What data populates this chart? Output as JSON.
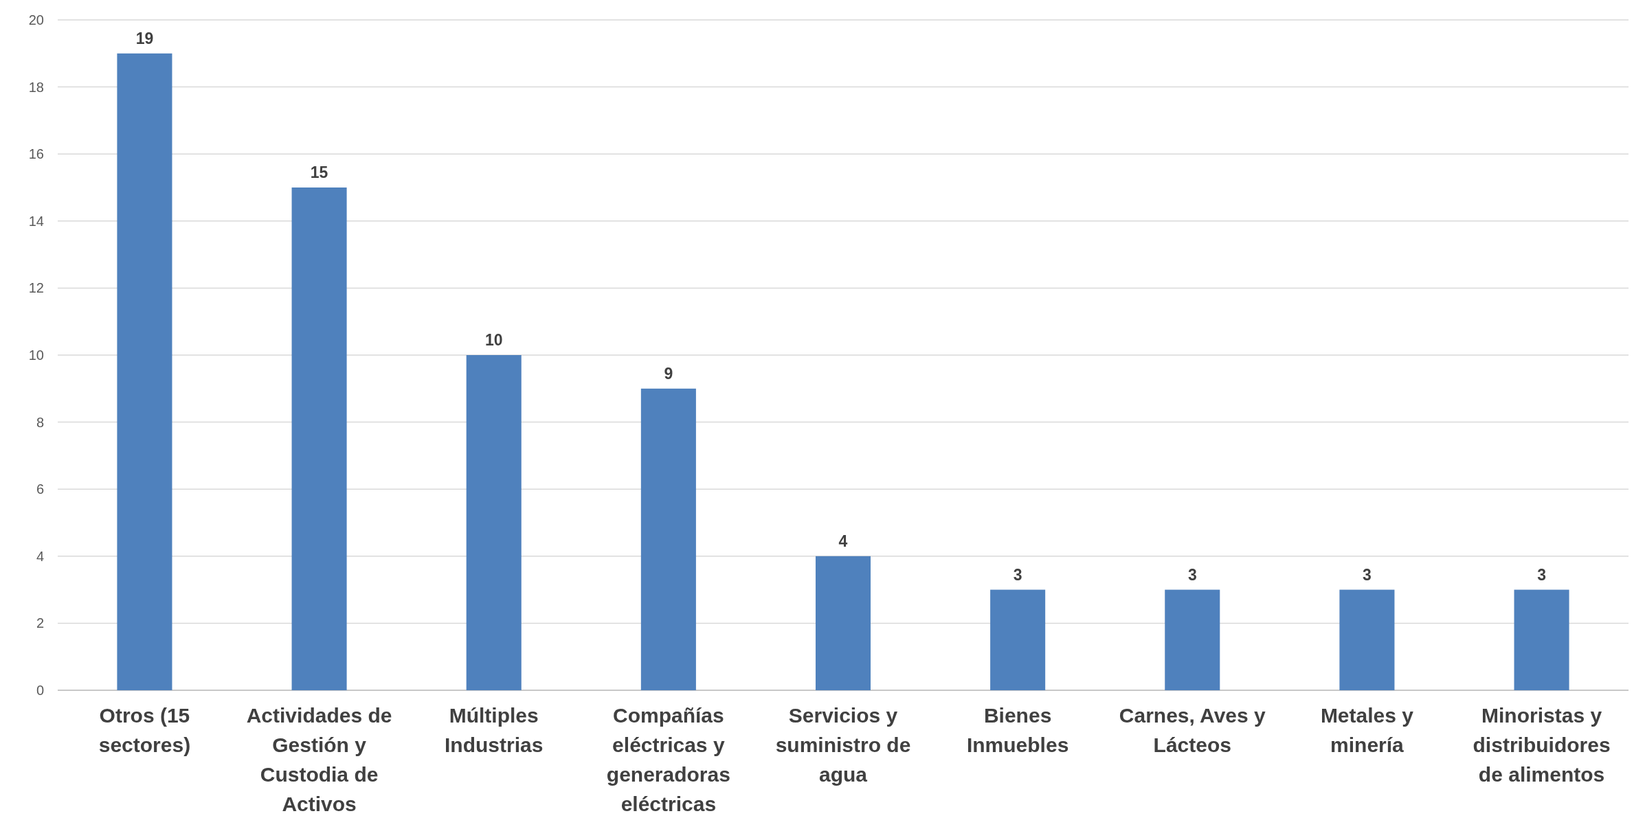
{
  "chart_data": {
    "type": "bar",
    "categories": [
      "Otros (15 sectores)",
      "Actividades de Gestión y Custodia de Activos",
      "Múltiples Industrias",
      "Compañías eléctricas y generadoras eléctricas",
      "Servicios y suministro de agua",
      "Bienes Inmuebles",
      "Carnes, Aves y Lácteos",
      "Metales y minería",
      "Minoristas y distribuidores de alimentos"
    ],
    "values": [
      19,
      15,
      10,
      9,
      4,
      3,
      3,
      3,
      3
    ],
    "color": "#4f81bd",
    "ylim": [
      0,
      20
    ],
    "yticks": [
      0,
      2,
      4,
      6,
      8,
      10,
      12,
      14,
      16,
      18,
      20
    ],
    "grid": "y",
    "data_labels": true
  }
}
